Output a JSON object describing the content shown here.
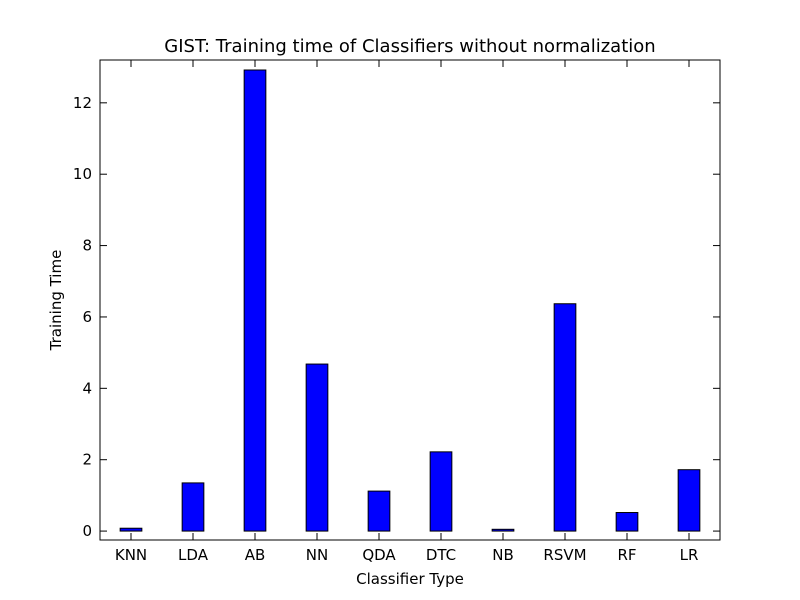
{
  "chart_data": {
    "type": "bar",
    "title": "GIST: Training time of Classifiers without normalization",
    "xlabel": "Classifier Type",
    "ylabel": "Training Time",
    "categories": [
      "KNN",
      "LDA",
      "AB",
      "NN",
      "QDA",
      "DTC",
      "NB",
      "RSVM",
      "RF",
      "LR"
    ],
    "values": [
      0.08,
      1.35,
      12.92,
      4.68,
      1.12,
      2.22,
      0.05,
      6.37,
      0.52,
      1.72
    ],
    "ylim": [
      -0.25,
      13.2
    ],
    "yticks": [
      0,
      2,
      4,
      6,
      8,
      10,
      12
    ],
    "grid": false,
    "legend": "none",
    "bar_color": "#0000ff",
    "edge_color": "#000000"
  }
}
